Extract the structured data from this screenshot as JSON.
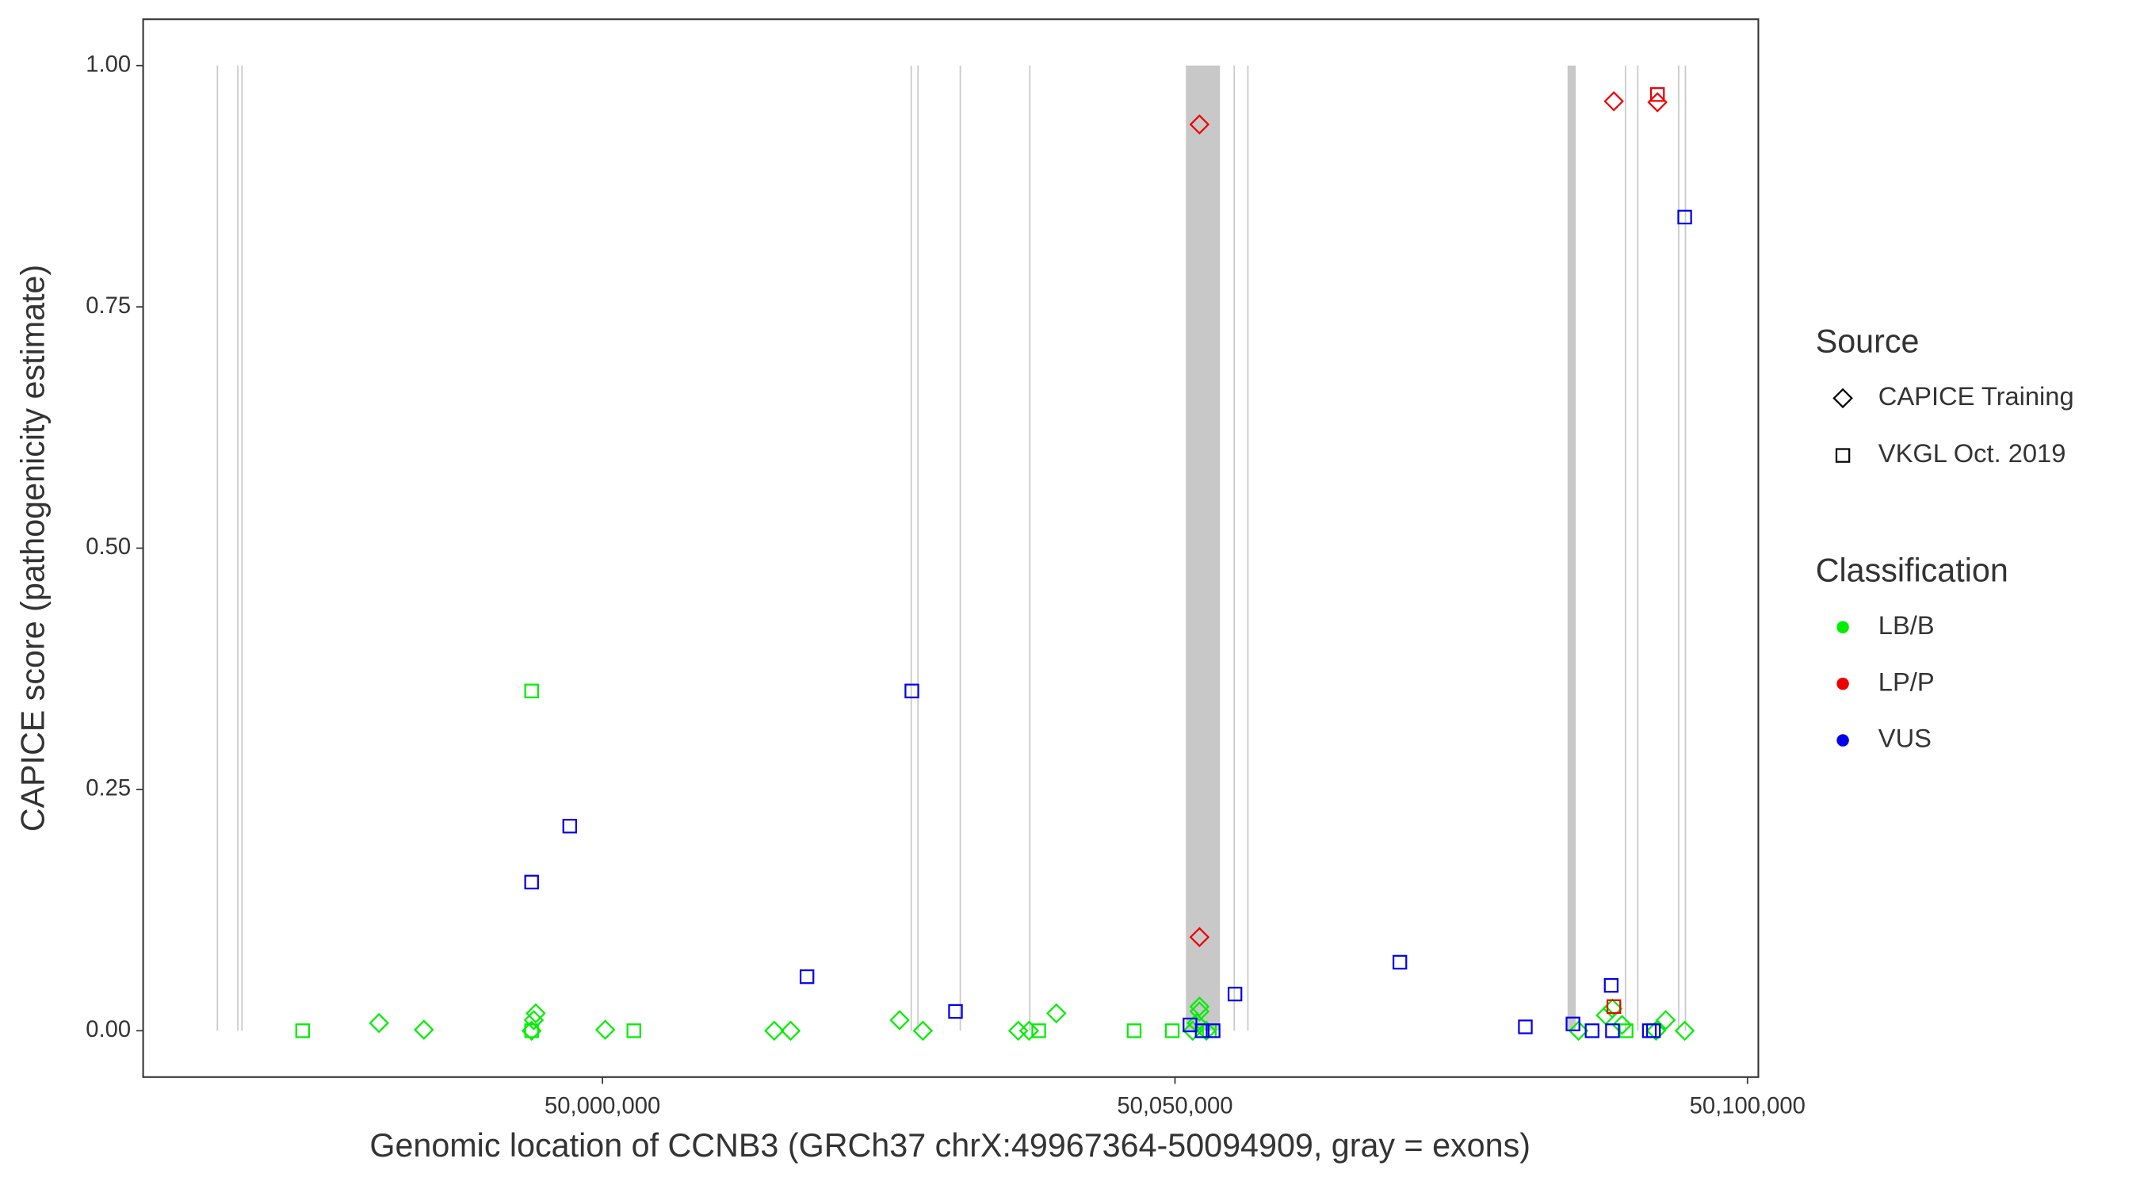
{
  "chart_data": {
    "type": "scatter",
    "xlabel": "Genomic location of CCNB3 (GRCh37 chrX:49967364-50094909, gray = exons)",
    "ylabel": "CAPICE score (pathogenicity estimate)",
    "xlim": [
      49959880,
      50100950
    ],
    "ylim": [
      -0.048,
      1.048
    ],
    "xticks": [
      {
        "value": 50000000,
        "label": "50,000,000"
      },
      {
        "value": 50050000,
        "label": "50,050,000"
      },
      {
        "value": 50100000,
        "label": "50,100,000"
      }
    ],
    "yticks": [
      {
        "value": 0,
        "label": "0.00"
      },
      {
        "value": 0.25,
        "label": "0.25"
      },
      {
        "value": 0.5,
        "label": "0.50"
      },
      {
        "value": 0.75,
        "label": "0.75"
      },
      {
        "value": 1,
        "label": "1.00"
      }
    ],
    "exon_color": "#c8c8c8",
    "exons": [
      [
        49966310,
        49966410
      ],
      [
        49968095,
        49968195
      ],
      [
        49968452,
        49968552
      ],
      [
        50026905,
        50027005
      ],
      [
        50027500,
        50027600
      ],
      [
        50031190,
        50031290
      ],
      [
        50037262,
        50037362
      ],
      [
        50050952,
        50053929
      ],
      [
        50055119,
        50055219
      ],
      [
        50056310,
        50056410
      ],
      [
        50084286,
        50085000
      ],
      [
        50089286,
        50089386
      ],
      [
        50090357,
        50090457
      ],
      [
        50093929,
        50094029
      ],
      [
        50094524,
        50094624
      ]
    ],
    "legend_source": {
      "title": "Source",
      "items": [
        {
          "name": "CAPICE Training",
          "shape": "diamond"
        },
        {
          "name": "VKGL Oct. 2019",
          "shape": "square"
        }
      ]
    },
    "legend_classification": {
      "title": "Classification",
      "items": [
        {
          "name": "LB/B",
          "color": "#00ee00"
        },
        {
          "name": "LP/P",
          "color": "#ee0000"
        },
        {
          "name": "VUS",
          "color": "#0000ee"
        }
      ]
    },
    "series": [
      {
        "source": 1,
        "classification": 0,
        "x": [
          49973810,
          49993810,
          49993810,
          50002740,
          50038100,
          50046430,
          50049760,
          50053000,
          50089400
        ],
        "y": [
          0,
          0.352,
          0,
          0,
          0,
          0,
          0,
          0,
          0
        ]
      },
      {
        "source": 0,
        "classification": 0,
        "x": [
          49980480,
          49984400,
          49994170,
          49993810,
          49994000,
          50000240,
          50015000,
          50016430,
          50025950,
          50027980,
          50036310,
          50037260,
          50039640,
          50052140,
          50052140,
          50051900,
          50051550,
          50052740,
          50085240,
          50087620,
          50088210,
          50089050,
          50092020,
          50092860,
          50094520
        ],
        "y": [
          0.008,
          0.001,
          0.018,
          0,
          0.011,
          0.001,
          0,
          0,
          0.011,
          0,
          0,
          0,
          0.018,
          0.025,
          0.02,
          0.008,
          0,
          0,
          0,
          0.016,
          0.023,
          0.006,
          0,
          0.011,
          0
        ]
      },
      {
        "source": 0,
        "classification": 1,
        "x": [
          50052140,
          50052140,
          50088330,
          50092140
        ],
        "y": [
          0.939,
          0.097,
          0.963,
          0.962
        ]
      },
      {
        "source": 1,
        "classification": 1,
        "x": [
          50092140,
          50088330
        ],
        "y": [
          0.97,
          0.025
        ]
      },
      {
        "source": 1,
        "classification": 2,
        "x": [
          49993810,
          49997140,
          50017860,
          50027020,
          50030830,
          50051310,
          50052380,
          50053330,
          50055240,
          50069640,
          50080600,
          50084760,
          50086430,
          50088100,
          50088210,
          50091430,
          50091790,
          50094520
        ],
        "y": [
          0.154,
          0.212,
          0.056,
          0.352,
          0.02,
          0.006,
          0,
          0,
          0.038,
          0.071,
          0.004,
          0.007,
          0,
          0.047,
          0,
          0,
          0,
          0.843
        ]
      }
    ]
  }
}
